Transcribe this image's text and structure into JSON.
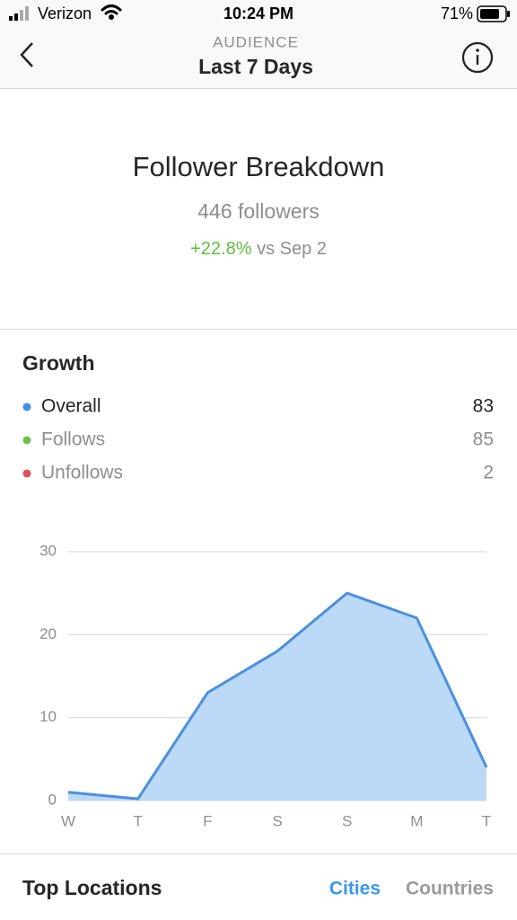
{
  "status_bar": {
    "carrier": "Verizon",
    "time": "10:24 PM",
    "battery": "71%"
  },
  "header": {
    "subtitle": "AUDIENCE",
    "title": "Last 7 Days"
  },
  "summary": {
    "title": "Follower Breakdown",
    "followers": "446 followers",
    "change": "+22.8%",
    "change_suffix": "vs Sep 2"
  },
  "growth": {
    "title": "Growth",
    "legend": [
      {
        "name": "Overall",
        "value": 83,
        "color": "#3f8fe6"
      },
      {
        "name": "Follows",
        "value": 85,
        "color": "#6cc04a"
      },
      {
        "name": "Unfollows",
        "value": 2,
        "color": "#e0505a"
      }
    ]
  },
  "chart_data": {
    "type": "area",
    "categories": [
      "W",
      "T",
      "F",
      "S",
      "S",
      "M",
      "T"
    ],
    "values": [
      1,
      0.2,
      13,
      18,
      25,
      22,
      4
    ],
    "color": "#4a90e2",
    "fill": "#bcdaf8",
    "ylim": [
      0,
      30
    ],
    "yticks": [
      0,
      10,
      20,
      30
    ],
    "grid": true
  },
  "top_locations": {
    "title": "Top Locations",
    "tabs": [
      "Cities",
      "Countries"
    ]
  }
}
